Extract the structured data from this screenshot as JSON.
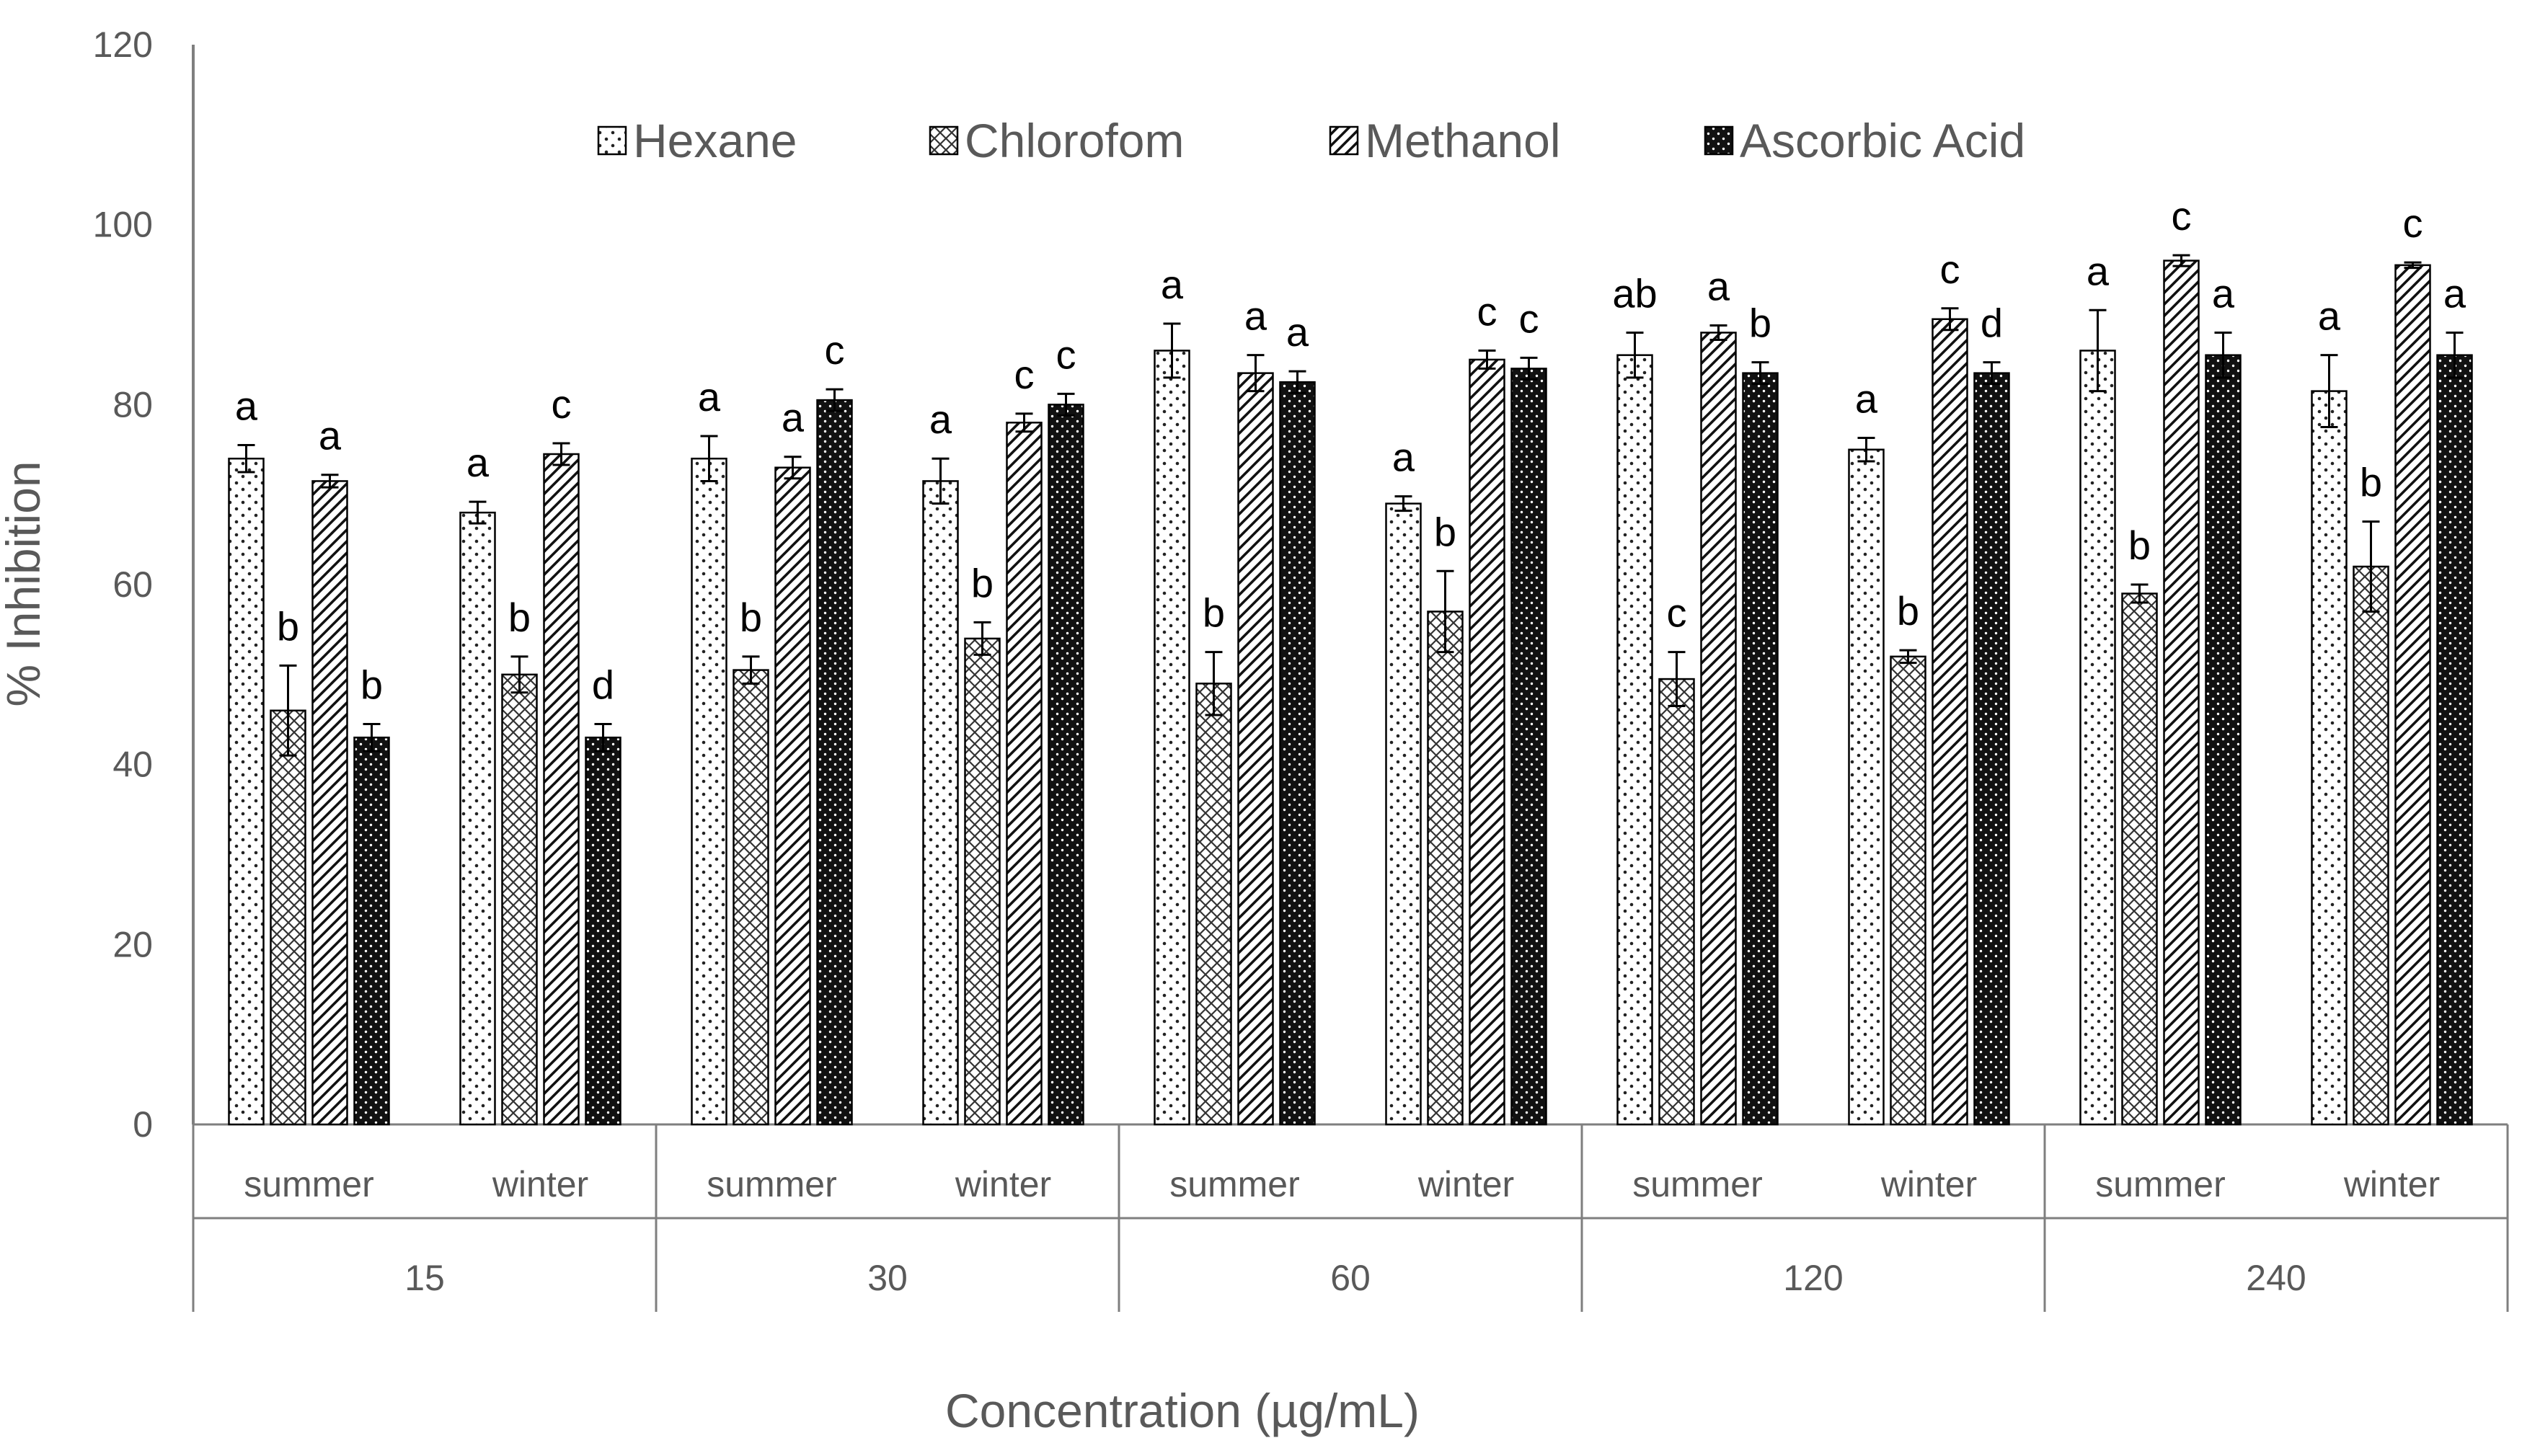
{
  "chart_data": {
    "type": "bar",
    "title": "",
    "xlabel": "Concentration (µg/mL)",
    "ylabel": "% Inhibition",
    "ylim": [
      0,
      120
    ],
    "yticks": [
      "0",
      "20",
      "40",
      "60",
      "80",
      "100",
      "120"
    ],
    "groups": [
      {
        "label": "15",
        "subgroups": [
          "summer",
          "winter"
        ]
      },
      {
        "label": "30",
        "subgroups": [
          "summer",
          "winter"
        ]
      },
      {
        "label": "60",
        "subgroups": [
          "summer",
          "winter"
        ]
      },
      {
        "label": "120",
        "subgroups": [
          "summer",
          "winter"
        ]
      },
      {
        "label": "240",
        "subgroups": [
          "summer",
          "winter"
        ]
      }
    ],
    "legend": [
      "Hexane",
      "Chlorofom",
      "Methanol",
      "Ascorbic Acid"
    ],
    "legend_position": "top",
    "series": [
      {
        "name": "Hexane",
        "pattern": "dots",
        "values": [
          74,
          68,
          74,
          71.5,
          86,
          69,
          85.5,
          75,
          86,
          81.5
        ],
        "errors": [
          1.5,
          1.2,
          2.5,
          2.5,
          3,
          0.8,
          2.5,
          1.3,
          4.5,
          4
        ],
        "labels": [
          "a",
          "a",
          "a",
          "a",
          "a",
          "a",
          "ab",
          "a",
          "a",
          "a"
        ]
      },
      {
        "name": "Chlorofom",
        "pattern": "crosshatch",
        "values": [
          46,
          50,
          50.5,
          54,
          49,
          57,
          49.5,
          52,
          59,
          62
        ],
        "errors": [
          5,
          2,
          1.5,
          1.8,
          3.5,
          4.5,
          3,
          0.7,
          1,
          5
        ],
        "labels": [
          "b",
          "b",
          "b",
          "b",
          "b",
          "b",
          "c",
          "b",
          "b",
          "b"
        ]
      },
      {
        "name": "Methanol",
        "pattern": "diagonal",
        "values": [
          71.5,
          74.5,
          73,
          78,
          83.5,
          85,
          88,
          89.5,
          96,
          95.5
        ],
        "errors": [
          0.7,
          1.2,
          1.2,
          1,
          2,
          1,
          0.8,
          1.2,
          0.6,
          0.3
        ],
        "labels": [
          "a",
          "c",
          "a",
          "c",
          "a",
          "c",
          "a",
          "c",
          "c",
          "c"
        ]
      },
      {
        "name": "Ascorbic Acid",
        "pattern": "solid-dots",
        "values": [
          43,
          43,
          80.5,
          80,
          82.5,
          84,
          83.5,
          83.5,
          85.5,
          85.5
        ],
        "errors": [
          1.5,
          1.5,
          1.2,
          1.2,
          1.2,
          1.2,
          1.2,
          1.2,
          2.5,
          2.5
        ],
        "labels": [
          "b",
          "d",
          "c",
          "c",
          "a",
          "c",
          "b",
          "d",
          "a",
          "a"
        ]
      }
    ]
  }
}
